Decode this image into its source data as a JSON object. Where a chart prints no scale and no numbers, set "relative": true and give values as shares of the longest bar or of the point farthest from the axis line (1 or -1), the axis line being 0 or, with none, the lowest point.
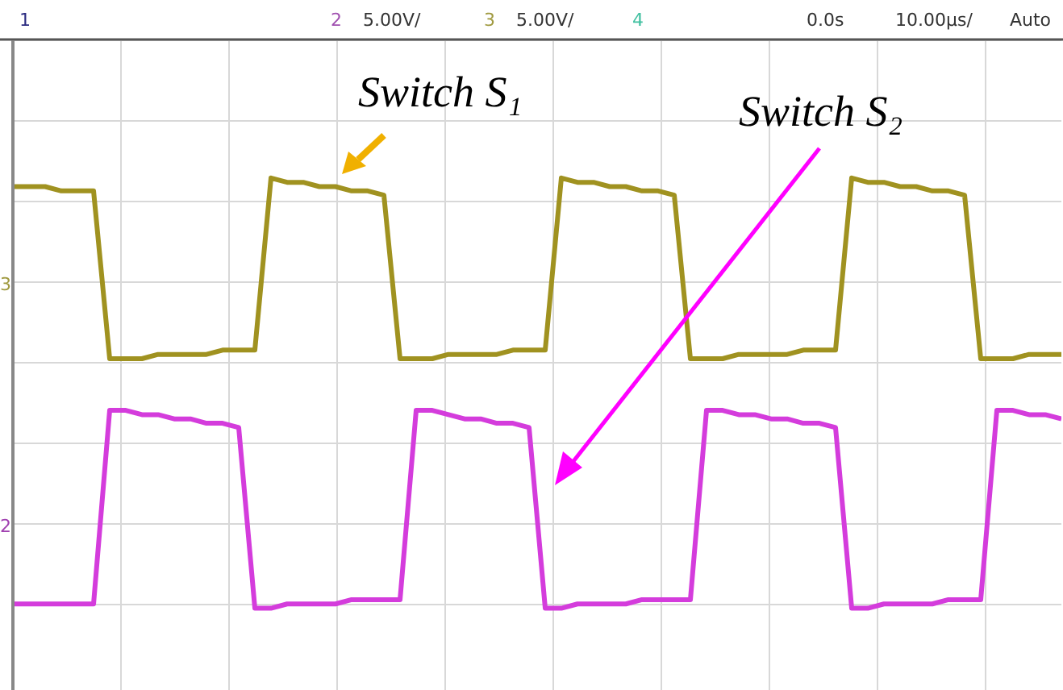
{
  "chart_data": {
    "type": "line",
    "relative": true,
    "grid": true,
    "marker": "none",
    "line_style": "solid",
    "categories": [
      null,
      null,
      null,
      null,
      null,
      null,
      null,
      null,
      null,
      null,
      null,
      null,
      null,
      null,
      null,
      null,
      null,
      null,
      null,
      null,
      null,
      null,
      null,
      null,
      null,
      null,
      null,
      null,
      null,
      null,
      null,
      null,
      null,
      null,
      null,
      null,
      null,
      null,
      null,
      null,
      null,
      null,
      null,
      null,
      null,
      null,
      null,
      null,
      null,
      null,
      null,
      null,
      null,
      null,
      null,
      null,
      null,
      null,
      null,
      null,
      null,
      null,
      null,
      null,
      null,
      null
    ],
    "series": [
      {
        "color": "#a09220",
        "values": [
          0.98,
          0.98,
          0.98,
          0.97,
          0.97,
          0.97,
          0.58,
          0.58,
          0.58,
          0.59,
          0.59,
          0.59,
          0.59,
          0.6,
          0.6,
          0.6,
          1.0,
          0.99,
          0.99,
          0.98,
          0.98,
          0.97,
          0.97,
          0.96,
          0.58,
          0.58,
          0.58,
          0.59,
          0.59,
          0.59,
          0.59,
          0.6,
          0.6,
          0.6,
          1.0,
          0.99,
          0.99,
          0.98,
          0.98,
          0.97,
          0.97,
          0.96,
          0.58,
          0.58,
          0.58,
          0.59,
          0.59,
          0.59,
          0.59,
          0.6,
          0.6,
          0.6,
          1.0,
          0.99,
          0.99,
          0.98,
          0.98,
          0.97,
          0.97,
          0.96,
          0.58,
          0.58,
          0.58,
          0.59,
          0.59,
          0.59
        ]
      },
      {
        "color": "#d43cdc",
        "values": [
          0.01,
          0.01,
          0.01,
          0.01,
          0.01,
          0.01,
          0.46,
          0.46,
          0.45,
          0.45,
          0.44,
          0.44,
          0.43,
          0.43,
          0.42,
          0.0,
          0.0,
          0.01,
          0.01,
          0.01,
          0.01,
          0.02,
          0.02,
          0.02,
          0.02,
          0.46,
          0.46,
          0.45,
          0.44,
          0.44,
          0.43,
          0.43,
          0.42,
          0.0,
          0.0,
          0.01,
          0.01,
          0.01,
          0.01,
          0.02,
          0.02,
          0.02,
          0.02,
          0.46,
          0.46,
          0.45,
          0.45,
          0.44,
          0.44,
          0.43,
          0.43,
          0.42,
          0.0,
          0.0,
          0.01,
          0.01,
          0.01,
          0.01,
          0.02,
          0.02,
          0.02,
          0.46,
          0.46,
          0.45,
          0.45,
          0.44
        ]
      }
    ],
    "annotations": [
      "Switch S₁",
      "Switch S₂",
      "1",
      "2",
      "5.00V/",
      "3",
      "5.00V/",
      "4",
      "0.0s",
      "10.00µs/",
      "Auto",
      "3",
      "2"
    ]
  }
}
